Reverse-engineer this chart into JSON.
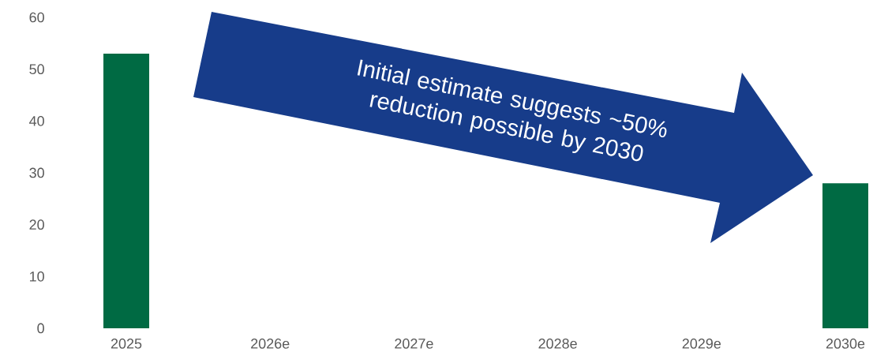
{
  "chart_data": {
    "type": "bar",
    "categories": [
      "2025",
      "2026e",
      "2027e",
      "2028e",
      "2029e",
      "2030e"
    ],
    "values": [
      53,
      null,
      null,
      null,
      null,
      28
    ],
    "colors": [
      "#006a43",
      "#006a43",
      "#006a43",
      "#006a43",
      "#006a43",
      "#006a43"
    ],
    "ylim": [
      0,
      60
    ],
    "yticks": [
      0,
      10,
      20,
      30,
      40,
      50,
      60
    ],
    "grid": false,
    "annotations": [
      "Initial estimate suggests ~50% reduction possible by 2030"
    ]
  }
}
